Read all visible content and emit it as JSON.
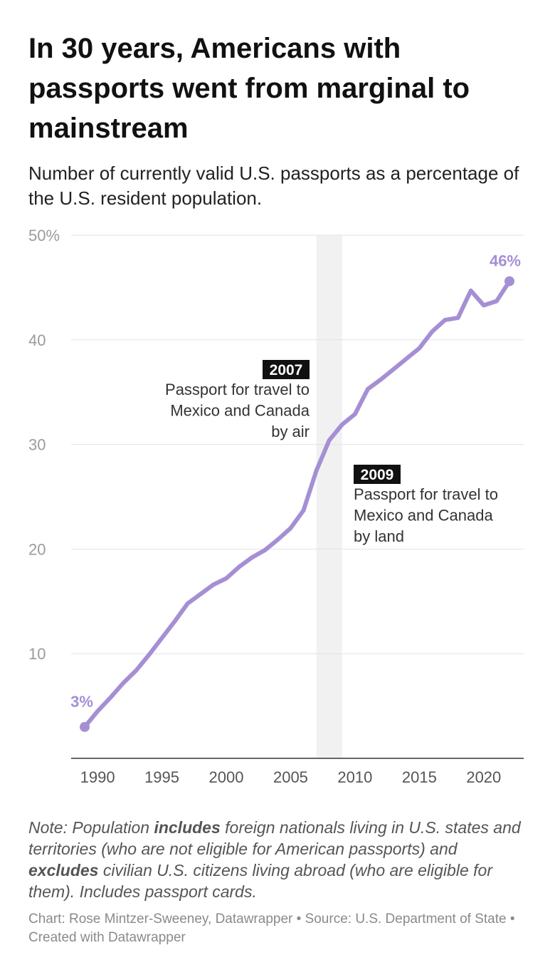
{
  "title": "In 30 years, Americans with passports went from marginal to mainstream",
  "subtitle": "Number of currently valid U.S. passports as a percentage of the U.S. resident population.",
  "note": {
    "p1": "Note: Population ",
    "b1": "includes",
    "p2": " foreign nationals living in U.S. states and territories (who are not eligible for American passports) and ",
    "b2": "excludes",
    "p3": " civilian U.S. citizens living abroad (who are eligible for them). Includes passport cards."
  },
  "credit": "Chart: Rose Mintzer-Sweeney, Datawrapper • Source: U.S. Department of State • Created with Datawrapper",
  "colors": {
    "line": "#a58fd4",
    "grid": "#e2e2e2",
    "band": "#f1f1f1",
    "axis": "#333333",
    "tick": "#9b9b9b"
  },
  "chart_data": {
    "type": "line",
    "title": "In 30 years, Americans with passports went from marginal to mainstream",
    "xlabel": "",
    "ylabel": "",
    "xlim": [
      1989,
      2022
    ],
    "ylim": [
      0,
      50
    ],
    "grid": true,
    "x_ticks": [
      1990,
      1995,
      2000,
      2005,
      2010,
      2015,
      2020
    ],
    "y_ticks": [
      {
        "value": 10,
        "label": "10"
      },
      {
        "value": 20,
        "label": "20"
      },
      {
        "value": 30,
        "label": "30"
      },
      {
        "value": 40,
        "label": "40"
      },
      {
        "value": 50,
        "label": "50%"
      }
    ],
    "series": [
      {
        "x": [
          1989,
          1990,
          1991,
          1992,
          1993,
          1994,
          1995,
          1996,
          1997,
          1998,
          1999,
          2000,
          2001,
          2002,
          2003,
          2004,
          2005,
          2006,
          2007,
          2008,
          2009,
          2010,
          2011,
          2012,
          2013,
          2014,
          2015,
          2016,
          2017,
          2018,
          2019,
          2020,
          2021,
          2022
        ],
        "values": [
          3.0,
          4.5,
          5.8,
          7.2,
          8.4,
          9.9,
          11.5,
          13.1,
          14.8,
          15.7,
          16.6,
          17.2,
          18.3,
          19.2,
          19.9,
          20.9,
          22.0,
          23.7,
          27.5,
          30.4,
          31.9,
          32.9,
          35.3,
          36.2,
          37.2,
          38.2,
          39.2,
          40.8,
          41.9,
          42.1,
          44.7,
          43.3,
          43.7,
          45.6
        ]
      }
    ],
    "labels": [
      {
        "x": 1989,
        "y": 3.0,
        "text": "3%"
      },
      {
        "x": 2022,
        "y": 45.6,
        "text": "46%"
      }
    ],
    "shaded_range": [
      2007,
      2009
    ],
    "annotations": [
      {
        "year_label": "2007",
        "text": [
          "Passport for travel to",
          "Mexico and Canada",
          "by air"
        ]
      },
      {
        "year_label": "2009",
        "text": [
          "Passport for travel to",
          "Mexico and Canada",
          "by land"
        ]
      }
    ]
  }
}
